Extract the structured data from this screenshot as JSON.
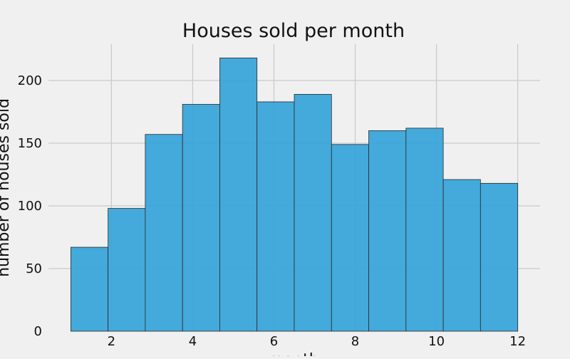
{
  "chart_data": {
    "type": "bar",
    "title": "Houses sold per month",
    "xlabel": "month",
    "ylabel": "number of houses sold",
    "bins": [
      {
        "x0": 1.0,
        "x1": 1.917,
        "value": 67
      },
      {
        "x0": 1.917,
        "x1": 2.833,
        "value": 98
      },
      {
        "x0": 2.833,
        "x1": 3.75,
        "value": 157
      },
      {
        "x0": 3.75,
        "x1": 4.667,
        "value": 181
      },
      {
        "x0": 4.667,
        "x1": 5.583,
        "value": 218
      },
      {
        "x0": 5.583,
        "x1": 6.5,
        "value": 183
      },
      {
        "x0": 6.5,
        "x1": 7.417,
        "value": 189
      },
      {
        "x0": 7.417,
        "x1": 8.333,
        "value": 149
      },
      {
        "x0": 8.333,
        "x1": 9.25,
        "value": 160
      },
      {
        "x0": 9.25,
        "x1": 10.167,
        "value": 162
      },
      {
        "x0": 10.167,
        "x1": 11.083,
        "value": 121
      },
      {
        "x0": 11.083,
        "x1": 12.0,
        "value": 118
      }
    ],
    "xlim": [
      0.45,
      12.55
    ],
    "ylim": [
      0,
      229
    ],
    "xticks": [
      2,
      4,
      6,
      8,
      10,
      12
    ],
    "yticks": [
      0,
      50,
      100,
      150,
      200
    ],
    "grid": true,
    "bar_color": "#3aa4d9",
    "edge_color": "#2b2b2b",
    "background": "#f0f0f0",
    "grid_color": "#cbcbcb"
  }
}
